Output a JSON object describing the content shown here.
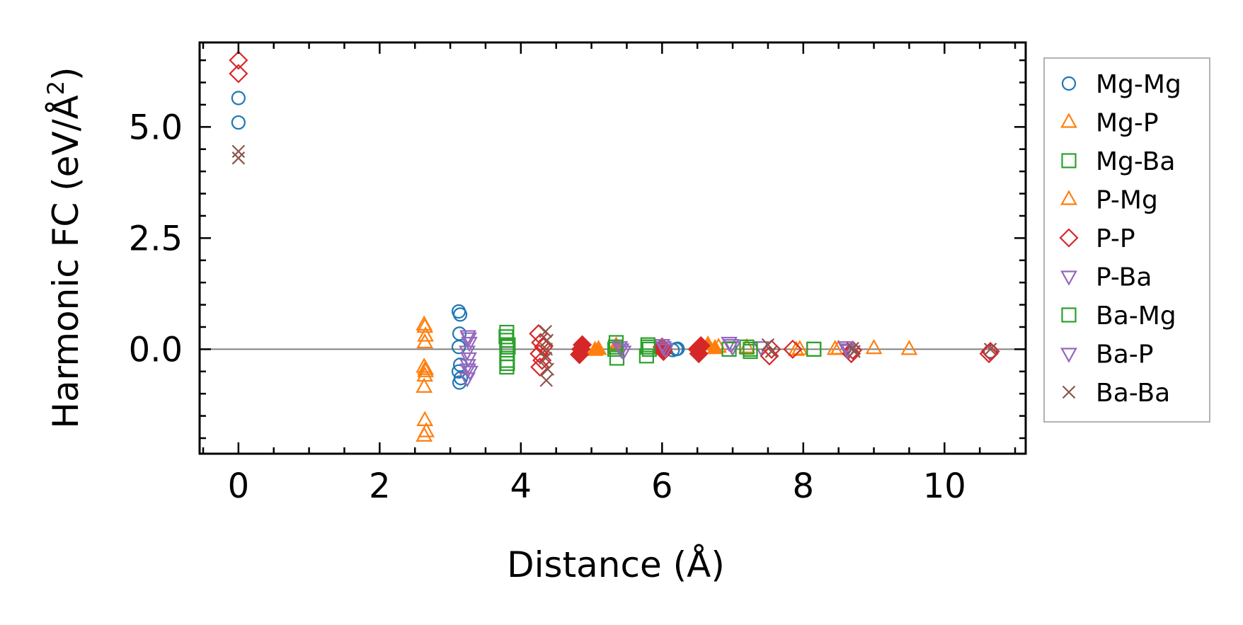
{
  "chart_data": {
    "type": "scatter",
    "xlabel": "Distance (Å)",
    "ylabel": "Harmonic FC (eV/Å²)",
    "ylabel_parts": {
      "main": "Harmonic FC (eV/Å",
      "sup": "2",
      "close": ")"
    },
    "xlim": [
      -0.55,
      11.15
    ],
    "ylim": [
      -2.35,
      6.9
    ],
    "x_ticks": [
      0,
      2,
      4,
      6,
      8,
      10
    ],
    "x_tick_labels": [
      "0",
      "2",
      "4",
      "6",
      "8",
      "10"
    ],
    "y_ticks": [
      0.0,
      2.5,
      5.0
    ],
    "y_tick_labels": [
      "0.0",
      "2.5",
      "5.0"
    ],
    "zero_line": 0,
    "legend_position": "right-outside",
    "series": [
      {
        "name": "Mg-Mg",
        "marker": "circle",
        "color": "#1f77b4",
        "points": [
          [
            0,
            5.65
          ],
          [
            0,
            5.1
          ],
          [
            3.12,
            0.85
          ],
          [
            3.14,
            0.78
          ],
          [
            3.13,
            0.35
          ],
          [
            3.12,
            0.05
          ],
          [
            3.14,
            -0.35
          ],
          [
            3.12,
            -0.5
          ],
          [
            3.15,
            -0.65
          ],
          [
            3.13,
            -0.75
          ],
          [
            6.2,
            0.0
          ],
          [
            6.15,
            -0.02
          ],
          [
            6.22,
            0.01
          ],
          [
            10.65,
            -0.05
          ]
        ]
      },
      {
        "name": "Mg-P",
        "marker": "triangle-up",
        "color": "#ff7f0e",
        "filled_clusters": true,
        "points": [
          [
            2.63,
            0.55
          ],
          [
            2.65,
            0.3
          ],
          [
            2.64,
            0.15
          ],
          [
            2.63,
            -0.4
          ],
          [
            2.65,
            -0.5
          ],
          [
            2.64,
            -0.6
          ],
          [
            2.63,
            -0.85
          ],
          [
            2.64,
            -1.6
          ],
          [
            2.66,
            -1.85
          ],
          [
            2.63,
            -1.95
          ],
          [
            4.85,
            0.05
          ],
          [
            5.05,
            -0.02
          ],
          [
            5.1,
            0.0
          ],
          [
            5.35,
            0.08
          ],
          [
            6.65,
            0.1
          ],
          [
            6.75,
            0.02
          ],
          [
            7.2,
            0.04
          ],
          [
            7.95,
            0.0
          ],
          [
            8.45,
            0.0
          ],
          [
            9.0,
            0.02
          ],
          [
            9.5,
            0.0
          ]
        ]
      },
      {
        "name": "Mg-Ba",
        "marker": "square",
        "color": "#2ca02c",
        "points": [
          [
            3.8,
            0.38
          ],
          [
            3.8,
            0.2
          ],
          [
            3.82,
            0.05
          ],
          [
            3.8,
            -0.1
          ],
          [
            3.81,
            -0.25
          ],
          [
            3.8,
            -0.4
          ],
          [
            3.79,
            0.28
          ],
          [
            3.81,
            -0.32
          ],
          [
            5.35,
            0.15
          ],
          [
            5.33,
            0.0
          ],
          [
            5.36,
            -0.2
          ],
          [
            5.8,
            0.1
          ],
          [
            5.82,
            0.0
          ],
          [
            5.78,
            -0.15
          ],
          [
            7.2,
            0.05
          ],
          [
            7.25,
            -0.05
          ],
          [
            8.15,
            0.0
          ]
        ]
      },
      {
        "name": "P-Mg",
        "marker": "triangle-up",
        "color": "#ff7f0e",
        "points": [
          [
            2.64,
            0.5
          ],
          [
            2.65,
            -0.45
          ],
          [
            4.9,
            0.03
          ],
          [
            6.8,
            0.05
          ],
          [
            7.9,
            -0.02
          ],
          [
            8.5,
            0.01
          ]
        ]
      },
      {
        "name": "P-P",
        "marker": "diamond",
        "color": "#d62728",
        "filled_clusters": true,
        "points": [
          [
            0,
            6.5
          ],
          [
            0,
            6.2
          ],
          [
            4.25,
            0.35
          ],
          [
            4.28,
            0.15
          ],
          [
            4.26,
            -0.1
          ],
          [
            4.3,
            -0.25
          ],
          [
            4.27,
            -0.4
          ],
          [
            4.32,
            0.05
          ],
          [
            4.85,
            0.0
          ],
          [
            4.83,
            -0.12
          ],
          [
            4.87,
            0.1
          ],
          [
            6.0,
            0.05
          ],
          [
            6.02,
            -0.05
          ],
          [
            6.5,
            0.0
          ],
          [
            6.52,
            -0.1
          ],
          [
            6.55,
            0.08
          ],
          [
            7.55,
            0.0
          ],
          [
            7.52,
            -0.15
          ],
          [
            7.85,
            0.0
          ],
          [
            8.7,
            -0.02
          ],
          [
            8.68,
            -0.1
          ],
          [
            10.65,
            -0.05
          ],
          [
            10.63,
            -0.1
          ]
        ]
      },
      {
        "name": "P-Ba",
        "marker": "triangle-down",
        "color": "#9467bd",
        "points": [
          [
            3.25,
            0.3
          ],
          [
            3.27,
            0.15
          ],
          [
            3.24,
            -0.05
          ],
          [
            3.26,
            -0.2
          ],
          [
            3.25,
            -0.35
          ],
          [
            3.28,
            -0.5
          ],
          [
            3.24,
            -0.65
          ],
          [
            5.4,
            0.05
          ],
          [
            5.45,
            -0.05
          ],
          [
            6.0,
            0.1
          ],
          [
            6.05,
            0.0
          ],
          [
            6.95,
            0.15
          ],
          [
            7.0,
            0.05
          ],
          [
            7.4,
            0.05
          ],
          [
            8.6,
            0.05
          ],
          [
            8.65,
            -0.02
          ]
        ]
      },
      {
        "name": "Ba-Mg",
        "marker": "square",
        "color": "#2ca02c",
        "points": [
          [
            3.82,
            0.1
          ],
          [
            5.34,
            0.05
          ],
          [
            5.8,
            0.05
          ],
          [
            6.95,
            0.0
          ],
          [
            7.25,
            0.0
          ],
          [
            8.15,
            0.0
          ]
        ]
      },
      {
        "name": "Ba-P",
        "marker": "triangle-down",
        "color": "#9467bd",
        "points": [
          [
            3.26,
            0.25
          ],
          [
            3.25,
            -0.45
          ],
          [
            5.42,
            0.0
          ],
          [
            6.02,
            0.05
          ],
          [
            6.98,
            0.1
          ],
          [
            8.62,
            0.0
          ]
        ]
      },
      {
        "name": "Ba-Ba",
        "marker": "x",
        "color": "#8c564b",
        "points": [
          [
            0,
            4.45
          ],
          [
            0,
            4.3
          ],
          [
            4.35,
            0.4
          ],
          [
            4.37,
            0.2
          ],
          [
            4.36,
            0.0
          ],
          [
            4.35,
            -0.2
          ],
          [
            4.38,
            -0.45
          ],
          [
            4.36,
            -0.7
          ],
          [
            7.5,
            0.1
          ],
          [
            7.55,
            -0.05
          ],
          [
            8.7,
            0.02
          ],
          [
            8.72,
            -0.05
          ],
          [
            10.65,
            0.0
          ]
        ]
      }
    ]
  }
}
